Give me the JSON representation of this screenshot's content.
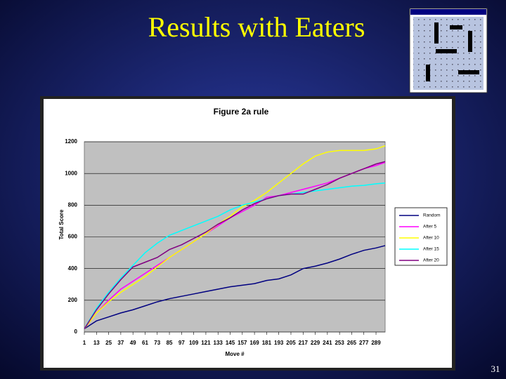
{
  "slide_title": "Results with Eaters",
  "page_number": "31",
  "chart_data": {
    "type": "line",
    "title": "Figure 2a rule",
    "x_label": "Move #",
    "y_label": "Total Score",
    "x": [
      1,
      13,
      25,
      37,
      49,
      61,
      73,
      85,
      97,
      109,
      121,
      133,
      145,
      157,
      169,
      181,
      193,
      205,
      217,
      229,
      241,
      253,
      265,
      277,
      289,
      298
    ],
    "xlim": [
      1,
      298
    ],
    "xticks": [
      1,
      13,
      25,
      37,
      49,
      61,
      73,
      85,
      97,
      109,
      121,
      133,
      145,
      157,
      169,
      181,
      193,
      205,
      217,
      229,
      241,
      253,
      265,
      277,
      289
    ],
    "ylim": [
      0,
      1200
    ],
    "yticks": [
      0,
      200,
      400,
      600,
      800,
      1000,
      1200
    ],
    "grid": true,
    "legend": "right",
    "series": [
      {
        "name": "Random",
        "color": "#000080",
        "values": [
          20,
          70,
          95,
          120,
          140,
          165,
          190,
          210,
          225,
          240,
          255,
          270,
          285,
          295,
          305,
          325,
          335,
          360,
          400,
          415,
          435,
          460,
          490,
          515,
          530,
          545
        ]
      },
      {
        "name": "After 5",
        "color": "#ff00ff",
        "values": [
          20,
          120,
          200,
          270,
          320,
          370,
          420,
          470,
          520,
          570,
          620,
          670,
          720,
          760,
          800,
          850,
          860,
          880,
          900,
          920,
          940,
          970,
          1000,
          1030,
          1050,
          1070
        ]
      },
      {
        "name": "After 10",
        "color": "#ffff00",
        "values": [
          20,
          120,
          190,
          250,
          300,
          350,
          410,
          470,
          520,
          570,
          620,
          680,
          730,
          790,
          830,
          880,
          940,
          1000,
          1060,
          1110,
          1135,
          1145,
          1145,
          1145,
          1155,
          1175
        ]
      },
      {
        "name": "After 15",
        "color": "#00ffff",
        "values": [
          20,
          150,
          250,
          340,
          420,
          500,
          560,
          610,
          640,
          670,
          700,
          730,
          770,
          800,
          820,
          840,
          860,
          870,
          880,
          890,
          900,
          910,
          920,
          925,
          935,
          940
        ]
      },
      {
        "name": "After 20",
        "color": "#800080",
        "values": [
          20,
          140,
          240,
          330,
          410,
          440,
          470,
          520,
          550,
          590,
          630,
          680,
          720,
          770,
          810,
          840,
          860,
          870,
          870,
          900,
          930,
          970,
          1000,
          1030,
          1060,
          1075
        ]
      }
    ]
  }
}
